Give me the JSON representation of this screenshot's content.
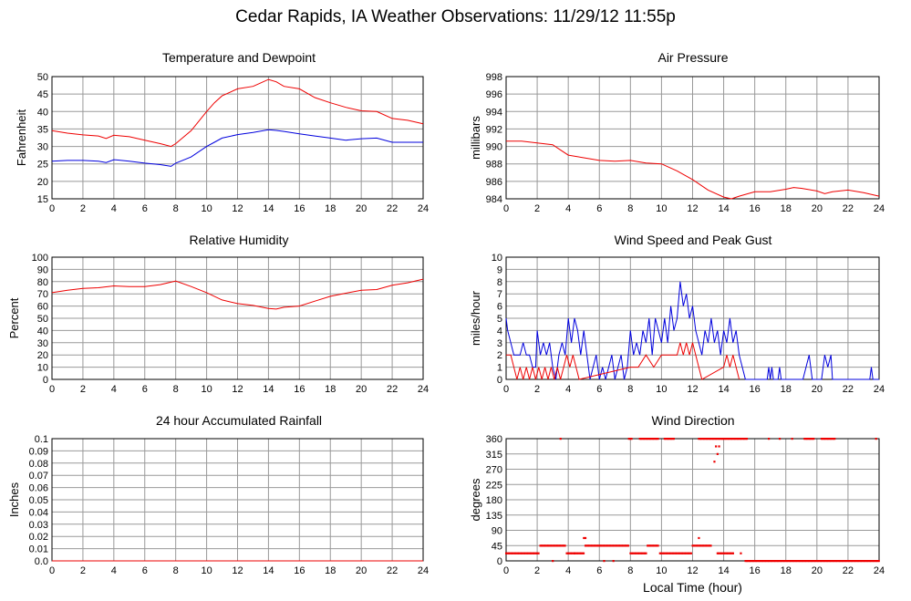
{
  "page": {
    "title": "Cedar Rapids, IA Weather Observations: 11/29/12 11:55p"
  },
  "colors": {
    "red": "#ee0000",
    "blue": "#0000dd",
    "grid": "#999999",
    "axis": "#000000"
  },
  "chart_data": [
    {
      "key": "temp",
      "type": "line",
      "title": "Temperature and Dewpoint",
      "xlabel": "",
      "ylabel": "Fahrenheit",
      "xlim": [
        0,
        24
      ],
      "ylim": [
        15,
        50
      ],
      "xticks": [
        0,
        2,
        4,
        6,
        8,
        10,
        12,
        14,
        16,
        18,
        20,
        22,
        24
      ],
      "yticks": [
        15,
        20,
        25,
        30,
        35,
        40,
        45,
        50
      ],
      "series": [
        {
          "color": "red",
          "x": [
            0,
            1,
            2,
            3,
            3.5,
            4,
            5,
            6,
            7,
            7.7,
            8,
            9,
            10,
            10.5,
            11,
            12,
            13,
            13.5,
            14,
            14.5,
            15,
            16,
            17,
            18,
            19,
            20,
            21,
            22,
            23,
            24
          ],
          "y": [
            34.5,
            33.8,
            33.3,
            33,
            32.3,
            33.2,
            32.8,
            31.8,
            30.8,
            30,
            30.8,
            34.5,
            40,
            42.5,
            44.5,
            46.5,
            47.2,
            48.2,
            49.2,
            48.5,
            47.2,
            46.5,
            44,
            42.5,
            41.2,
            40.2,
            40,
            38,
            37.5,
            36.5
          ]
        },
        {
          "color": "blue",
          "x": [
            0,
            1,
            2,
            3,
            3.5,
            4,
            5,
            6,
            7,
            7.7,
            8,
            9,
            10,
            10.5,
            11,
            12,
            13,
            14,
            14.5,
            15,
            16,
            17,
            18,
            19,
            20,
            21,
            22,
            23,
            24
          ],
          "y": [
            25.8,
            26,
            26,
            25.8,
            25.4,
            26.2,
            25.8,
            25.2,
            24.8,
            24.3,
            25.2,
            27,
            30,
            31.2,
            32.4,
            33.4,
            34,
            34.8,
            34.6,
            34.3,
            33.6,
            33,
            32.4,
            31.8,
            32.2,
            32.4,
            31.2,
            31.2,
            31.2
          ]
        }
      ]
    },
    {
      "key": "pres",
      "type": "line",
      "title": "Air Pressure",
      "xlabel": "",
      "ylabel": "millibars",
      "xlim": [
        0,
        24
      ],
      "ylim": [
        984,
        998
      ],
      "xticks": [
        0,
        2,
        4,
        6,
        8,
        10,
        12,
        14,
        16,
        18,
        20,
        22,
        24
      ],
      "yticks": [
        984,
        986,
        988,
        990,
        992,
        994,
        996,
        998
      ],
      "series": [
        {
          "color": "red",
          "x": [
            0,
            1,
            2,
            3,
            3.5,
            4,
            5,
            6,
            7,
            8,
            9,
            10,
            11,
            12,
            13,
            14,
            14.5,
            15,
            16,
            17,
            18,
            18.5,
            19,
            20,
            20.5,
            21,
            22,
            23,
            24
          ],
          "y": [
            990.6,
            990.6,
            990.4,
            990.2,
            989.6,
            989,
            988.7,
            988.4,
            988.3,
            988.4,
            988.1,
            988,
            987.2,
            986.2,
            985,
            984.2,
            984,
            984.3,
            984.8,
            984.8,
            985.1,
            985.3,
            985.2,
            984.9,
            984.6,
            984.8,
            985,
            984.7,
            984.3
          ]
        }
      ]
    },
    {
      "key": "rh",
      "type": "line",
      "title": "Relative Humidity",
      "xlabel": "",
      "ylabel": "Percent",
      "xlim": [
        0,
        24
      ],
      "ylim": [
        0,
        100
      ],
      "xticks": [
        0,
        2,
        4,
        6,
        8,
        10,
        12,
        14,
        16,
        18,
        20,
        22,
        24
      ],
      "yticks": [
        0,
        10,
        20,
        30,
        40,
        50,
        60,
        70,
        80,
        90,
        100
      ],
      "series": [
        {
          "color": "red",
          "x": [
            0,
            1,
            2,
            3,
            4,
            5,
            6,
            7,
            7.5,
            8,
            9,
            10,
            11,
            12,
            13,
            14,
            14.5,
            15,
            16,
            17,
            18,
            19,
            20,
            21,
            22,
            23,
            24
          ],
          "y": [
            71,
            73,
            74.5,
            75,
            76.5,
            76,
            76,
            77.5,
            79,
            80.5,
            76,
            71,
            65,
            62,
            60.5,
            58,
            57.5,
            59,
            60,
            64,
            68,
            70.5,
            73,
            73.5,
            77,
            79,
            82
          ]
        }
      ]
    },
    {
      "key": "wind",
      "type": "line",
      "title": "Wind Speed and Peak Gust",
      "xlabel": "",
      "ylabel": "miles/hour",
      "xlim": [
        0,
        24
      ],
      "ylim": [
        0,
        10
      ],
      "xticks": [
        0,
        2,
        4,
        6,
        8,
        10,
        12,
        14,
        16,
        18,
        20,
        22,
        24
      ],
      "yticks": [
        0,
        1,
        2,
        3,
        4,
        5,
        6,
        7,
        8,
        9,
        10
      ],
      "series": [
        {
          "color": "blue",
          "x": [
            0,
            0.1,
            0.3,
            0.5,
            0.7,
            0.9,
            1.1,
            1.3,
            1.5,
            1.7,
            1.9,
            2.0,
            2.2,
            2.4,
            2.6,
            2.8,
            3.0,
            3.2,
            3.4,
            3.6,
            3.8,
            4.0,
            4.2,
            4.4,
            4.6,
            4.8,
            5.0,
            5.2,
            5.4,
            5.6,
            5.8,
            6.0,
            6.2,
            6.4,
            6.6,
            6.8,
            7.0,
            7.2,
            7.4,
            7.6,
            7.8,
            8.0,
            8.2,
            8.4,
            8.6,
            8.8,
            9.0,
            9.2,
            9.4,
            9.6,
            9.8,
            10.0,
            10.2,
            10.4,
            10.6,
            10.8,
            11.0,
            11.2,
            11.4,
            11.6,
            11.8,
            12.0,
            12.2,
            12.4,
            12.6,
            12.8,
            13.0,
            13.2,
            13.4,
            13.6,
            13.8,
            14.0,
            14.2,
            14.4,
            14.6,
            14.8,
            15.0,
            15.2,
            15.4,
            15.5,
            16.8,
            16.9,
            17.0,
            17.1,
            17.2,
            17.5,
            17.6,
            17.7,
            17.8,
            19.1,
            19.3,
            19.5,
            19.6,
            19.7,
            20.3,
            20.5,
            20.7,
            20.9,
            21.0,
            21.1,
            23.4,
            23.5,
            23.6,
            23.7,
            24
          ],
          "y": [
            5,
            4,
            3,
            2,
            2,
            2,
            3,
            2,
            2,
            1,
            1,
            4,
            2,
            3,
            2,
            3,
            1,
            0,
            2,
            3,
            2,
            5,
            3,
            5,
            4,
            2,
            4,
            2,
            0,
            1,
            2,
            0,
            1,
            0,
            1,
            2,
            0,
            1,
            2,
            0,
            1,
            4,
            2,
            3,
            2,
            4,
            3,
            5,
            2,
            5,
            4,
            3,
            5,
            3,
            6,
            4,
            5,
            8,
            6,
            7,
            5,
            6,
            4,
            3,
            2,
            4,
            3,
            5,
            3,
            4,
            2,
            4,
            3,
            5,
            3,
            4,
            2,
            1,
            0,
            0,
            0,
            1,
            0,
            1,
            0,
            0,
            1,
            0,
            0,
            0,
            1,
            2,
            1,
            0,
            0,
            2,
            1,
            2,
            0,
            0,
            0,
            1,
            0,
            0,
            0
          ]
        },
        {
          "color": "red",
          "x": [
            0,
            0.1,
            0.3,
            0.5,
            0.7,
            0.9,
            1.1,
            1.3,
            1.5,
            1.7,
            1.9,
            2.1,
            2.3,
            2.5,
            2.7,
            2.9,
            3.1,
            3.3,
            3.5,
            3.7,
            3.9,
            4.1,
            4.3,
            4.5,
            4.7,
            8.0,
            8.5,
            9.0,
            9.5,
            10.0,
            10.5,
            11.0,
            11.2,
            11.4,
            11.6,
            11.8,
            12.0,
            12.2,
            12.4,
            12.6,
            14.0,
            14.2,
            14.4,
            14.6,
            14.8,
            15.0
          ],
          "y": [
            2,
            2,
            2,
            1,
            0,
            1,
            0,
            1,
            0,
            1,
            0,
            1,
            0,
            1,
            0,
            1,
            0,
            1,
            0,
            1,
            2,
            1,
            2,
            1,
            0,
            1,
            1,
            2,
            1,
            2,
            2,
            2,
            3,
            2,
            3,
            2,
            3,
            2,
            1,
            0,
            1,
            2,
            1,
            2,
            1,
            0
          ]
        }
      ]
    },
    {
      "key": "rain",
      "type": "line",
      "title": "24 hour Accumulated Rainfall",
      "xlabel": "",
      "ylabel": "Inches",
      "xlim": [
        0,
        24
      ],
      "ylim": [
        0,
        0.1
      ],
      "xticks": [
        0,
        2,
        4,
        6,
        8,
        10,
        12,
        14,
        16,
        18,
        20,
        22,
        24
      ],
      "yticks": [
        "0.0",
        "0.01",
        "0.02",
        "0.03",
        "0.04",
        "0.05",
        "0.06",
        "0.07",
        "0.08",
        "0.09",
        "0.1"
      ],
      "series": [
        {
          "color": "red",
          "x": [
            0,
            24
          ],
          "y": [
            0,
            0
          ]
        }
      ]
    },
    {
      "key": "dir",
      "type": "scatter",
      "title": "Wind Direction",
      "xlabel": "Local Time (hour)",
      "ylabel": "degrees",
      "xlim": [
        0,
        24
      ],
      "ylim": [
        0,
        360
      ],
      "xticks": [
        0,
        2,
        4,
        6,
        8,
        10,
        12,
        14,
        16,
        18,
        20,
        22,
        24
      ],
      "yticks": [
        0,
        45,
        90,
        135,
        180,
        225,
        270,
        315,
        360
      ],
      "segments": [
        {
          "from": 0,
          "to": 2.1,
          "y": 22.5
        },
        {
          "from": 2.2,
          "to": 3.8,
          "y": 45
        },
        {
          "from": 3.9,
          "to": 5.0,
          "y": 22.5
        },
        {
          "from": 5.1,
          "to": 7.9,
          "y": 45
        },
        {
          "from": 8.0,
          "to": 9.0,
          "y": 22.5
        },
        {
          "from": 9.1,
          "to": 9.8,
          "y": 45
        },
        {
          "from": 9.9,
          "to": 11.9,
          "y": 22.5
        },
        {
          "from": 12.0,
          "to": 13.2,
          "y": 45
        },
        {
          "from": 13.6,
          "to": 14.6,
          "y": 22.5
        },
        {
          "from": 15.4,
          "to": 24,
          "y": 0
        },
        {
          "from": 7.9,
          "to": 8.1,
          "y": 360
        },
        {
          "from": 8.6,
          "to": 9.8,
          "y": 360
        },
        {
          "from": 10.2,
          "to": 10.8,
          "y": 360
        },
        {
          "from": 12.4,
          "to": 15.5,
          "y": 360
        },
        {
          "from": 19.2,
          "to": 19.8,
          "y": 360
        },
        {
          "from": 20.3,
          "to": 21.2,
          "y": 360
        }
      ],
      "points": [
        {
          "x": 3.5,
          "y": 360
        },
        {
          "x": 3.0,
          "y": 0
        },
        {
          "x": 6.3,
          "y": 0
        },
        {
          "x": 6.9,
          "y": 0
        },
        {
          "x": 4.4,
          "y": 22.5
        },
        {
          "x": 5.0,
          "y": 67.5
        },
        {
          "x": 5.1,
          "y": 67.5
        },
        {
          "x": 12.4,
          "y": 67.5
        },
        {
          "x": 13.5,
          "y": 337.5
        },
        {
          "x": 13.6,
          "y": 315
        },
        {
          "x": 13.4,
          "y": 292.5
        },
        {
          "x": 13.7,
          "y": 337.5
        },
        {
          "x": 16.9,
          "y": 360
        },
        {
          "x": 17.6,
          "y": 360
        },
        {
          "x": 18.4,
          "y": 360
        },
        {
          "x": 23.8,
          "y": 360
        },
        {
          "x": 15.1,
          "y": 22.5
        }
      ]
    }
  ]
}
